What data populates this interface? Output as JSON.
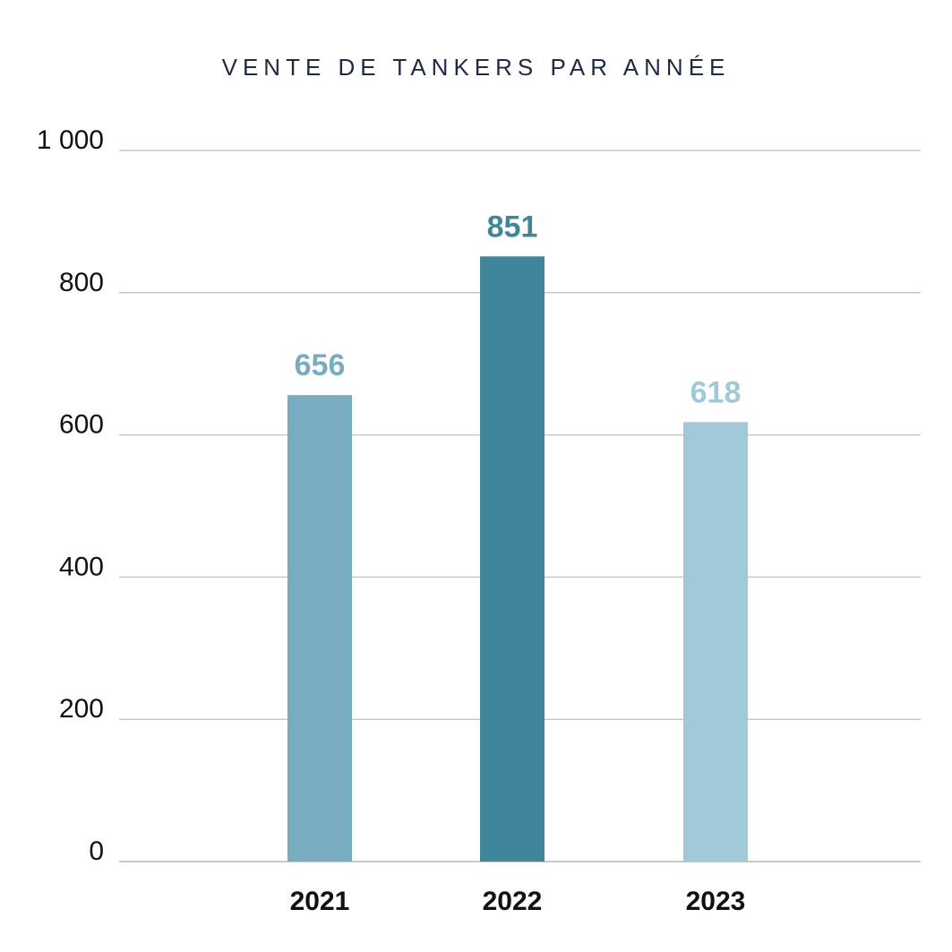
{
  "chart_data": {
    "type": "bar",
    "title": "VENTE DE TANKERS PAR ANNÉE",
    "xlabel": "",
    "ylabel": "",
    "categories": [
      "2021",
      "2022",
      "2023"
    ],
    "values": [
      656,
      851,
      618
    ],
    "value_labels": [
      "656",
      "851",
      "618"
    ],
    "ylim": [
      0,
      1000
    ],
    "yticks": [
      0,
      200,
      400,
      600,
      800,
      1000
    ],
    "ytick_labels": [
      "0",
      "200",
      "400",
      "600",
      "800",
      "1 000"
    ],
    "grid": true,
    "legend": "none",
    "bar_colors": [
      "#78acc1",
      "#3f869c",
      "#a2c9d7"
    ],
    "gridline_color": "#c8c8c8"
  }
}
